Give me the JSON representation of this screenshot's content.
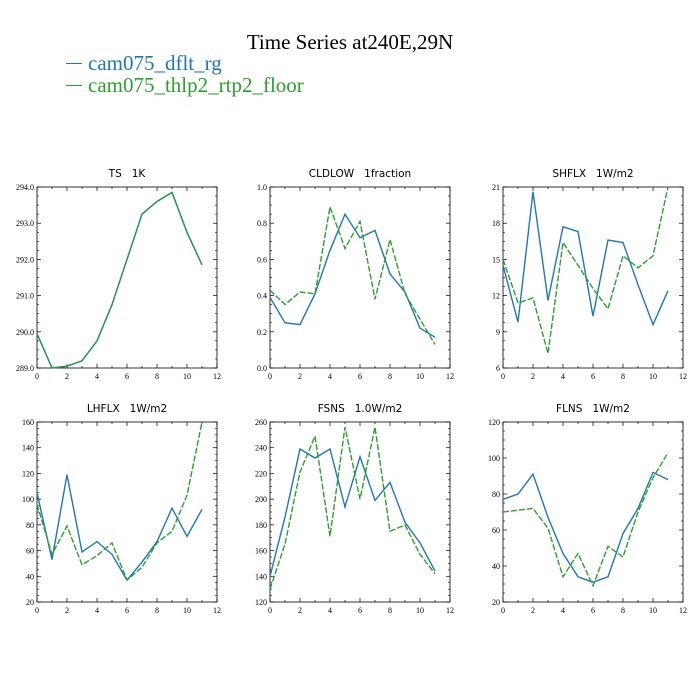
{
  "figure_title": "Time Series at240E,29N",
  "legend": [
    {
      "label": "cam075_dflt_rg",
      "color": "#1f77b4"
    },
    {
      "label": "cam075_thlp2_rtp2_floor",
      "color": "#2ca02c"
    }
  ],
  "chart_data": [
    {
      "type": "line",
      "title": "TS   1K",
      "xlim": [
        0,
        12
      ],
      "xticks": [
        0,
        2,
        4,
        6,
        8,
        10,
        12
      ],
      "ylim": [
        289,
        294
      ],
      "yticks": [
        "289.0",
        "290.0",
        "291.0",
        "292.0",
        "293.0",
        "294.0"
      ],
      "x": [
        0,
        1,
        2,
        3,
        4,
        5,
        6,
        7,
        8,
        9,
        10,
        11
      ],
      "series": [
        {
          "name": "cam075_dflt_rg",
          "color": "#1f77b4",
          "dash": "",
          "values": [
            289.95,
            289.0,
            289.05,
            289.2,
            289.75,
            290.75,
            292.0,
            293.25,
            293.6,
            293.85,
            292.75,
            291.85
          ]
        },
        {
          "name": "cam075_thlp2_rtp2_floor",
          "color": "#2ca02c",
          "dash": "6,2",
          "values": [
            289.95,
            289.0,
            289.05,
            289.2,
            289.75,
            290.75,
            292.0,
            293.25,
            293.6,
            293.85,
            292.75,
            291.85
          ]
        }
      ]
    },
    {
      "type": "line",
      "title": "CLDLOW   1fraction",
      "xlim": [
        0,
        12
      ],
      "xticks": [
        0,
        2,
        4,
        6,
        8,
        10,
        12
      ],
      "ylim": [
        0,
        1
      ],
      "yticks": [
        "0.0",
        "0.2",
        "0.4",
        "0.6",
        "0.8",
        "1.0"
      ],
      "x": [
        0,
        1,
        2,
        3,
        4,
        5,
        6,
        7,
        8,
        9,
        10,
        11
      ],
      "series": [
        {
          "name": "cam075_dflt_rg",
          "color": "#1f77b4",
          "dash": "",
          "values": [
            0.39,
            0.25,
            0.24,
            0.41,
            0.65,
            0.85,
            0.72,
            0.76,
            0.52,
            0.42,
            0.22,
            0.17
          ]
        },
        {
          "name": "cam075_thlp2_rtp2_floor",
          "color": "#2ca02c",
          "dash": "6,2",
          "values": [
            0.43,
            0.35,
            0.42,
            0.41,
            0.89,
            0.66,
            0.81,
            0.38,
            0.71,
            0.41,
            0.27,
            0.13
          ]
        }
      ]
    },
    {
      "type": "line",
      "title": "SHFLX   1W/m2",
      "xlim": [
        0,
        12
      ],
      "xticks": [
        0,
        2,
        4,
        6,
        8,
        10,
        12
      ],
      "ylim": [
        6,
        21
      ],
      "yticks": [
        "6",
        "9",
        "12",
        "15",
        "18",
        "21"
      ],
      "x": [
        0,
        1,
        2,
        3,
        4,
        5,
        6,
        7,
        8,
        9,
        10,
        11
      ],
      "series": [
        {
          "name": "cam075_dflt_rg",
          "color": "#1f77b4",
          "dash": "",
          "values": [
            14.5,
            9.8,
            20.6,
            11.6,
            17.7,
            17.3,
            10.3,
            16.6,
            16.4,
            12.9,
            9.6,
            12.4
          ]
        },
        {
          "name": "cam075_thlp2_rtp2_floor",
          "color": "#2ca02c",
          "dash": "6,2",
          "values": [
            15.0,
            11.4,
            11.8,
            7.2,
            16.4,
            14.5,
            12.6,
            10.9,
            15.3,
            14.3,
            15.3,
            21.0
          ]
        }
      ]
    },
    {
      "type": "line",
      "title": "LHFLX   1W/m2",
      "xlim": [
        0,
        12
      ],
      "xticks": [
        0,
        2,
        4,
        6,
        8,
        10,
        12
      ],
      "ylim": [
        20,
        160
      ],
      "yticks": [
        "20",
        "40",
        "60",
        "80",
        "100",
        "120",
        "140",
        "160"
      ],
      "x": [
        0,
        1,
        2,
        3,
        4,
        5,
        6,
        7,
        8,
        9,
        10,
        11
      ],
      "series": [
        {
          "name": "cam075_dflt_rg",
          "color": "#1f77b4",
          "dash": "",
          "values": [
            105,
            53,
            119,
            59,
            67,
            57,
            37,
            51,
            67,
            93,
            71,
            92
          ]
        },
        {
          "name": "cam075_thlp2_rtp2_floor",
          "color": "#2ca02c",
          "dash": "6,2",
          "values": [
            96,
            57,
            79,
            49,
            56,
            66,
            37,
            47,
            66,
            75,
            103,
            160
          ]
        }
      ]
    },
    {
      "type": "line",
      "title": "FSNS   1.0W/m2",
      "xlim": [
        0,
        12
      ],
      "xticks": [
        0,
        2,
        4,
        6,
        8,
        10,
        12
      ],
      "ylim": [
        120,
        260
      ],
      "yticks": [
        "120",
        "140",
        "160",
        "180",
        "200",
        "220",
        "240",
        "260"
      ],
      "x": [
        0,
        1,
        2,
        3,
        4,
        5,
        6,
        7,
        8,
        9,
        10,
        11
      ],
      "series": [
        {
          "name": "cam075_dflt_rg",
          "color": "#1f77b4",
          "dash": "",
          "values": [
            140,
            186,
            239,
            232,
            239,
            194,
            233,
            199,
            213,
            182,
            166,
            144
          ]
        },
        {
          "name": "cam075_thlp2_rtp2_floor",
          "color": "#2ca02c",
          "dash": "6,2",
          "values": [
            130,
            165,
            221,
            249,
            171,
            256,
            200,
            256,
            175,
            180,
            157,
            142
          ]
        }
      ]
    },
    {
      "type": "line",
      "title": "FLNS   1W/m2",
      "xlim": [
        0,
        12
      ],
      "xticks": [
        0,
        2,
        4,
        6,
        8,
        10,
        12
      ],
      "ylim": [
        20,
        120
      ],
      "yticks": [
        "20",
        "40",
        "60",
        "80",
        "100",
        "120"
      ],
      "x": [
        0,
        1,
        2,
        3,
        4,
        5,
        6,
        7,
        8,
        9,
        10,
        11
      ],
      "series": [
        {
          "name": "cam075_dflt_rg",
          "color": "#1f77b4",
          "dash": "",
          "values": [
            77,
            80,
            91,
            67,
            47,
            34,
            31,
            34,
            58,
            72,
            92,
            88
          ]
        },
        {
          "name": "cam075_thlp2_rtp2_floor",
          "color": "#2ca02c",
          "dash": "6,2",
          "values": [
            70,
            71,
            72,
            61,
            34,
            47,
            29,
            51,
            45,
            70,
            89,
            103
          ]
        }
      ]
    }
  ]
}
